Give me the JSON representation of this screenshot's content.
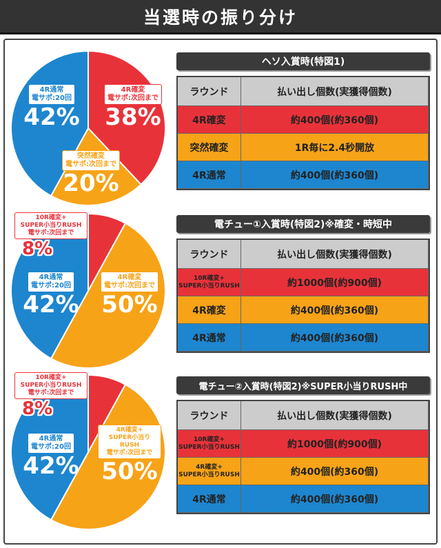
{
  "header": {
    "title": "当選時の振り分け"
  },
  "colors": {
    "red": "#e8323a",
    "orange": "#f7a318",
    "blue": "#1d86cf",
    "gray": "#cccccc",
    "dark": "#333333"
  },
  "sections": [
    {
      "title": "ヘソ入賞時(特図1)",
      "table": {
        "col1": "ラウンド",
        "col2": "払い出し個数(実獲得個数)",
        "rows": [
          {
            "round": "4R確変",
            "payout": "約400個(約360個)",
            "color": "red"
          },
          {
            "round": "突然確変",
            "payout": "1R毎に2.4秒開放",
            "color": "orange"
          },
          {
            "round": "4R通常",
            "payout": "約400個(約360個)",
            "color": "blue"
          }
        ]
      }
    },
    {
      "title": "電チュー①入賞時(特図2)※確変・時短中",
      "table": {
        "col1": "ラウンド",
        "col2": "払い出し個数(実獲得個数)",
        "rows": [
          {
            "round": "10R確変+\nSUPER小当りRUSH",
            "payout": "約1000個(約900個)",
            "color": "red"
          },
          {
            "round": "4R確変",
            "payout": "約400個(約360個)",
            "color": "orange"
          },
          {
            "round": "4R通常",
            "payout": "約400個(約360個)",
            "color": "blue"
          }
        ]
      }
    },
    {
      "title": "電チュー②入賞時(特図2)※SUPER小当りRUSH中",
      "table": {
        "col1": "ラウンド",
        "col2": "払い出し個数(実獲得個数)",
        "rows": [
          {
            "round": "10R確変+\nSUPER小当りRUSH",
            "payout": "約1000個(約900個)",
            "color": "red"
          },
          {
            "round": "4R確変+\nSUPER小当りRUSH",
            "payout": "約400個(約360個)",
            "color": "orange"
          },
          {
            "round": "4R通常",
            "payout": "約400個(約360個)",
            "color": "blue"
          }
        ]
      }
    }
  ],
  "chart_data": [
    {
      "type": "pie",
      "series": [
        {
          "label": "4R確変\n電サポ:次回まで",
          "value": 38,
          "pct": "38%",
          "color": "red"
        },
        {
          "label": "突然確変\n電サポ:次回まで",
          "value": 20,
          "pct": "20%",
          "color": "orange"
        },
        {
          "label": "4R通常\n電サポ:20回",
          "value": 42,
          "pct": "42%",
          "color": "blue"
        }
      ]
    },
    {
      "type": "pie",
      "series": [
        {
          "label": "10R確変+\nSUPER小当りRUSH\n電サポ:次回まで",
          "value": 8,
          "pct": "8%",
          "color": "red"
        },
        {
          "label": "4R確変\n電サポ:次回まで",
          "value": 50,
          "pct": "50%",
          "color": "orange"
        },
        {
          "label": "4R通常\n電サポ:20回",
          "value": 42,
          "pct": "42%",
          "color": "blue"
        }
      ]
    },
    {
      "type": "pie",
      "series": [
        {
          "label": "10R確変+\nSUPER小当りRUSH\n電サポ:次回まで",
          "value": 8,
          "pct": "8%",
          "color": "red"
        },
        {
          "label": "4R確変+\nSUPER小当りRUSH\n電サポ:次回まで",
          "value": 50,
          "pct": "50%",
          "color": "orange"
        },
        {
          "label": "4R通常\n電サポ:20回",
          "value": 42,
          "pct": "42%",
          "color": "blue"
        }
      ]
    }
  ]
}
